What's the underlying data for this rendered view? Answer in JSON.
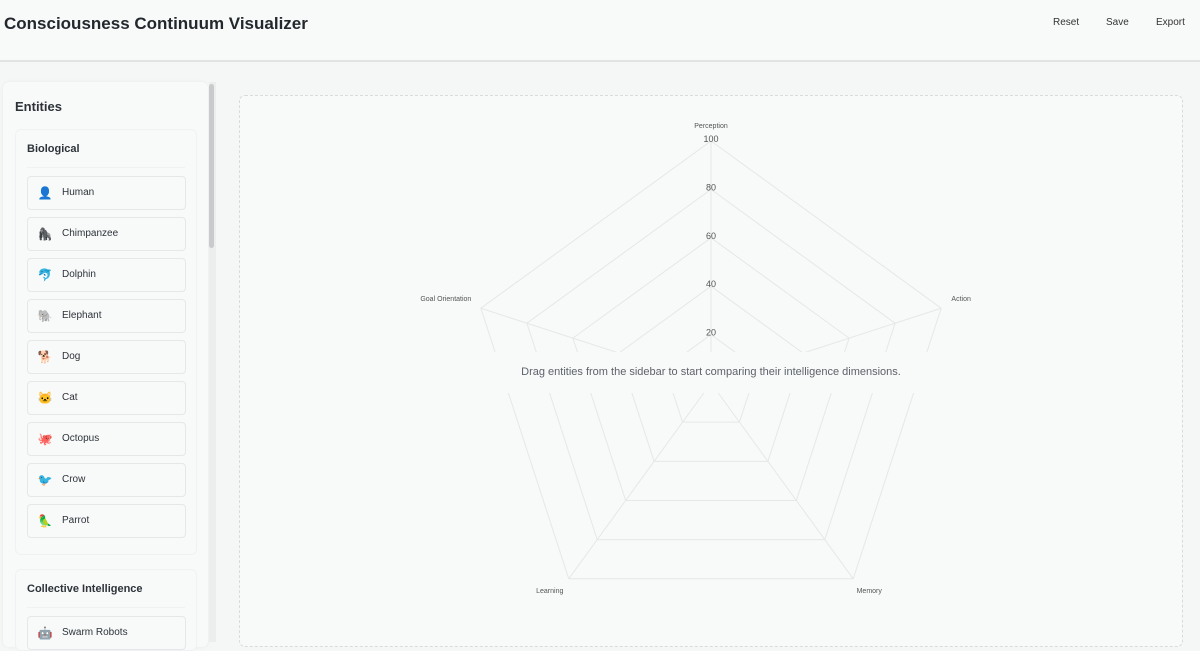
{
  "header": {
    "title": "Consciousness Continuum Visualizer",
    "buttons": [
      "Reset",
      "Save",
      "Export"
    ]
  },
  "sidebar": {
    "title": "Entities",
    "groups": [
      {
        "title": "Biological",
        "items": [
          {
            "label": "Human",
            "icon": "👤"
          },
          {
            "label": "Chimpanzee",
            "icon": "🦍"
          },
          {
            "label": "Dolphin",
            "icon": "🐬"
          },
          {
            "label": "Elephant",
            "icon": "🐘"
          },
          {
            "label": "Dog",
            "icon": "🐕"
          },
          {
            "label": "Cat",
            "icon": "🐱"
          },
          {
            "label": "Octopus",
            "icon": "🐙"
          },
          {
            "label": "Crow",
            "icon": "🐦"
          },
          {
            "label": "Parrot",
            "icon": "🦜"
          }
        ]
      },
      {
        "title": "Collective Intelligence",
        "items": [
          {
            "label": "Swarm Robots",
            "icon": "🤖"
          }
        ]
      }
    ]
  },
  "main": {
    "empty_message": "Drag entities from the sidebar to start comparing their intelligence dimensions."
  },
  "chart_data": {
    "type": "radar",
    "axes": [
      "Perception",
      "Action",
      "Memory",
      "Learning",
      "Goal Orientation"
    ],
    "ticks": [
      20,
      40,
      60,
      80,
      100
    ],
    "range": [
      0,
      100
    ],
    "series": [],
    "grid": true,
    "grid_color": "#e6e7e8"
  }
}
